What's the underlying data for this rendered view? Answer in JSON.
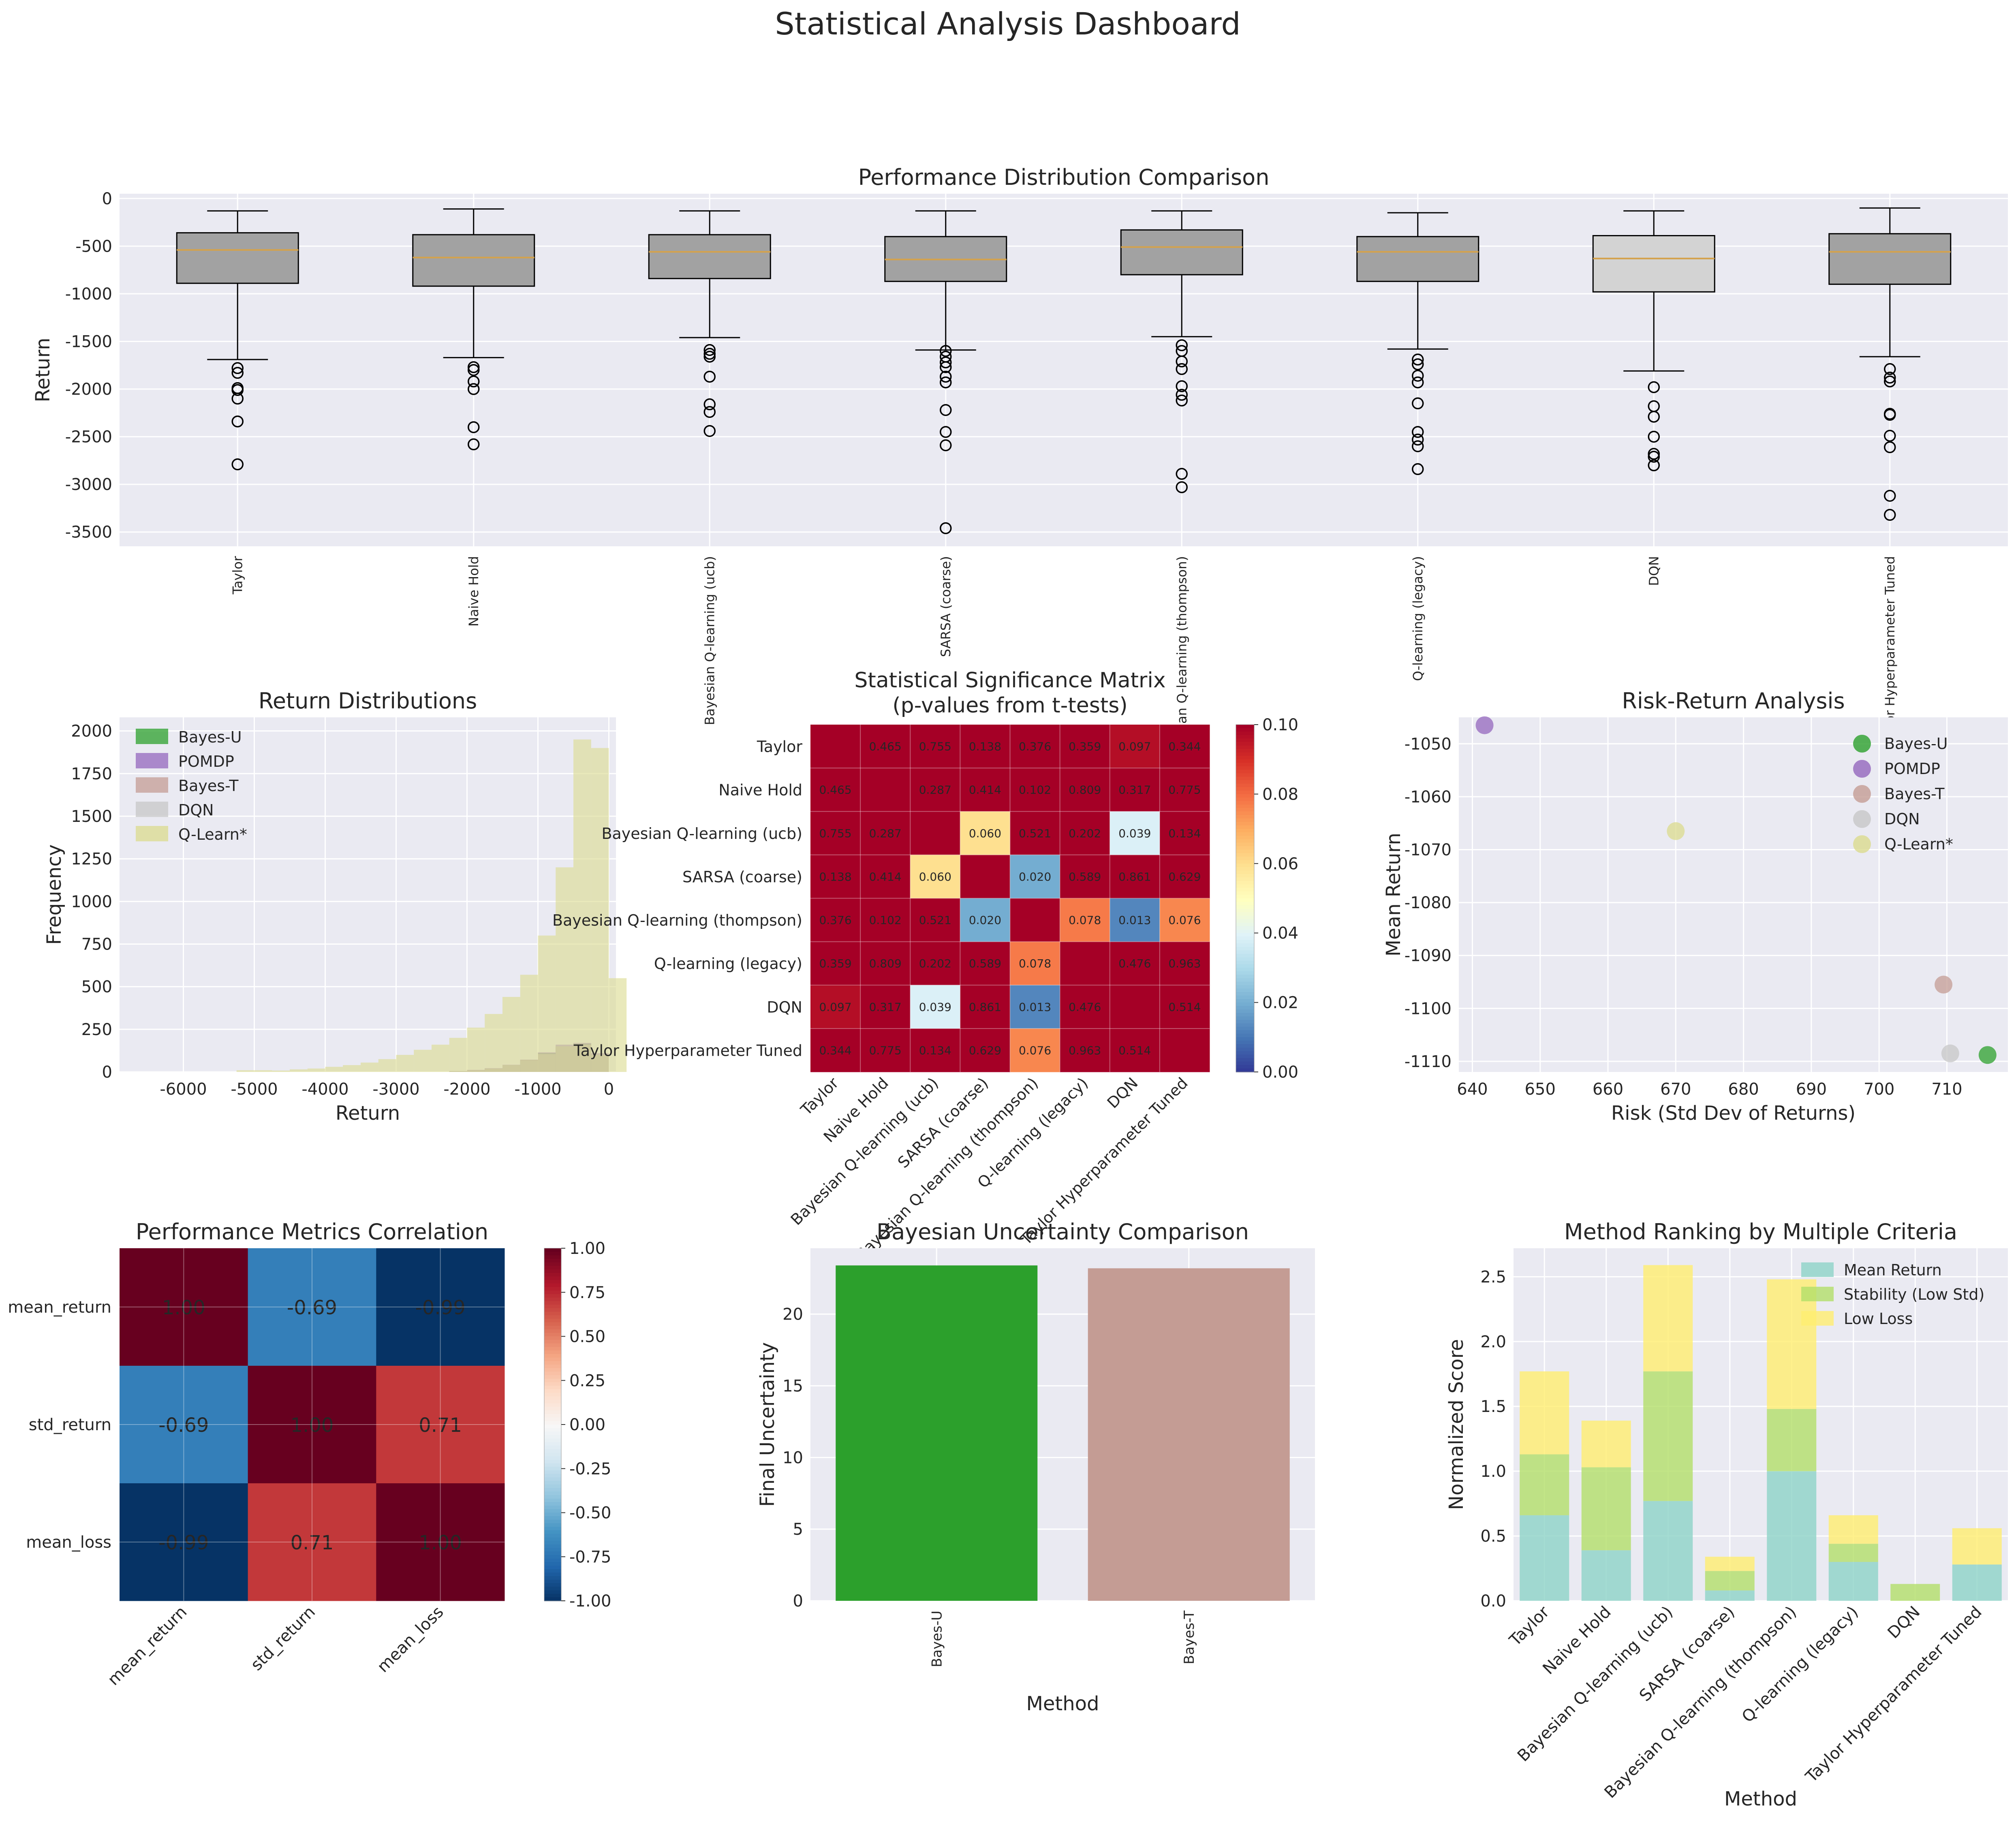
{
  "figure_title": "Statistical Analysis Dashboard",
  "colors": {
    "panel_bg": "#EAEAF2",
    "grid": "#ffffff",
    "box_fill": "#a2a2a2",
    "box_fill_light": "#d3d3d3",
    "median": "#d4a24c",
    "bayes_u": "#2ca02c",
    "pomdp": "#9467bd",
    "bayes_t": "#c49c94",
    "dqn": "#c7c7c7",
    "qlearn": "#dbdb8d",
    "rank_mean": "#8dd3c7",
    "rank_stability": "#b3de69",
    "rank_lowloss": "#ffed6f"
  },
  "chart_data": [
    {
      "id": "boxplot",
      "type": "box",
      "title": "Performance Distribution Comparison",
      "ylabel": "Return",
      "ylim": [
        -3650,
        50
      ],
      "yticks": [
        0,
        -500,
        -1000,
        -1500,
        -2000,
        -2500,
        -3000,
        -3500
      ],
      "categories": [
        "Taylor",
        "Naive Hold",
        "Bayesian Q-learning (ucb)",
        "SARSA (coarse)",
        "Bayesian Q-learning (thompson)",
        "Q-learning (legacy)",
        "DQN",
        "Taylor Hyperparameter Tuned"
      ],
      "boxes": [
        {
          "whislo": -1690,
          "q1": -890,
          "med": -540,
          "q3": -360,
          "whishi": -130,
          "fliers": [
            -1780,
            -1830,
            -1990,
            -2010,
            -2100,
            -2340,
            -2790
          ]
        },
        {
          "whislo": -1670,
          "q1": -920,
          "med": -620,
          "q3": -380,
          "whishi": -110,
          "fliers": [
            -1770,
            -1800,
            -1920,
            -2000,
            -2400,
            -2580
          ]
        },
        {
          "whislo": -1460,
          "q1": -840,
          "med": -560,
          "q3": -380,
          "whishi": -130,
          "fliers": [
            -1590,
            -1630,
            -1660,
            -1870,
            -2160,
            -2240,
            -2440
          ]
        },
        {
          "whislo": -1590,
          "q1": -870,
          "med": -640,
          "q3": -400,
          "whishi": -130,
          "fliers": [
            -1600,
            -1660,
            -1720,
            -1770,
            -1870,
            -1930,
            -2220,
            -2450,
            -2590,
            -3460
          ]
        },
        {
          "whislo": -1450,
          "q1": -800,
          "med": -510,
          "q3": -330,
          "whishi": -130,
          "fliers": [
            -1540,
            -1600,
            -1710,
            -1790,
            -1970,
            -2060,
            -2120,
            -2890,
            -3030
          ]
        },
        {
          "whislo": -1580,
          "q1": -870,
          "med": -560,
          "q3": -400,
          "whishi": -150,
          "fliers": [
            -1690,
            -1740,
            -1860,
            -1930,
            -2150,
            -2450,
            -2530,
            -2600,
            -2840
          ]
        },
        {
          "whislo": -1810,
          "q1": -980,
          "med": -630,
          "q3": -390,
          "whishi": -130,
          "fliers": [
            -1980,
            -2180,
            -2290,
            -2500,
            -2680,
            -2710,
            -2800
          ]
        },
        {
          "whislo": -1660,
          "q1": -900,
          "med": -560,
          "q3": -370,
          "whishi": -100,
          "fliers": [
            -1790,
            -1880,
            -1920,
            -2260,
            -2270,
            -2490,
            -2610,
            -3120,
            -3320
          ]
        }
      ]
    },
    {
      "id": "hist",
      "type": "histogram",
      "title": "Return Distributions",
      "xlabel": "Return",
      "ylabel": "Frequency",
      "xlim": [
        -6900,
        100
      ],
      "ylim": [
        0,
        2080
      ],
      "xticks": [
        -6000,
        -5000,
        -4000,
        -3000,
        -2000,
        -1000,
        0
      ],
      "yticks": [
        0,
        250,
        500,
        750,
        1000,
        1250,
        1500,
        1750,
        2000
      ],
      "bin_width": 250,
      "series": [
        {
          "name": "Bayes-U",
          "color_key": "bayes_u",
          "bins": [
            [
              -2250,
              5
            ],
            [
              -2000,
              10
            ],
            [
              -1750,
              20
            ],
            [
              -1500,
              40
            ],
            [
              -1250,
              70
            ],
            [
              -1000,
              110
            ],
            [
              -750,
              150
            ],
            [
              -500,
              165
            ],
            [
              -250,
              100
            ]
          ]
        },
        {
          "name": "POMDP",
          "color_key": "pomdp",
          "bins": [
            [
              -2250,
              5
            ],
            [
              -2000,
              12
            ],
            [
              -1750,
              22
            ],
            [
              -1500,
              42
            ],
            [
              -1250,
              72
            ],
            [
              -1000,
              115
            ],
            [
              -750,
              160
            ],
            [
              -500,
              170
            ],
            [
              -250,
              110
            ]
          ]
        },
        {
          "name": "Bayes-T",
          "color_key": "bayes_t",
          "bins": [
            [
              -2250,
              5
            ],
            [
              -2000,
              10
            ],
            [
              -1750,
              20
            ],
            [
              -1500,
              40
            ],
            [
              -1250,
              70
            ],
            [
              -1000,
              105
            ],
            [
              -750,
              150
            ],
            [
              -500,
              160
            ],
            [
              -250,
              100
            ]
          ]
        },
        {
          "name": "DQN",
          "color_key": "dqn",
          "bins": [
            [
              -2250,
              5
            ],
            [
              -2000,
              10
            ],
            [
              -1750,
              20
            ],
            [
              -1500,
              40
            ],
            [
              -1250,
              68
            ],
            [
              -1000,
              105
            ],
            [
              -750,
              150
            ],
            [
              -500,
              160
            ],
            [
              -250,
              100
            ]
          ]
        },
        {
          "name": "Q-Learn*",
          "color_key": "qlearn",
          "bins": [
            [
              -5250,
              10
            ],
            [
              -5000,
              10
            ],
            [
              -4750,
              8
            ],
            [
              -4500,
              15
            ],
            [
              -4250,
              20
            ],
            [
              -4000,
              30
            ],
            [
              -3750,
              40
            ],
            [
              -3500,
              55
            ],
            [
              -3250,
              75
            ],
            [
              -3000,
              100
            ],
            [
              -2750,
              130
            ],
            [
              -2500,
              160
            ],
            [
              -2250,
              200
            ],
            [
              -2000,
              260
            ],
            [
              -1750,
              340
            ],
            [
              -1500,
              440
            ],
            [
              -1250,
              570
            ],
            [
              -1000,
              800
            ],
            [
              -750,
              1200
            ],
            [
              -500,
              1950
            ],
            [
              -250,
              1900
            ],
            [
              0,
              550
            ]
          ]
        }
      ]
    },
    {
      "id": "pvals",
      "type": "heatmap",
      "title": "Statistical Significance Matrix",
      "subtitle": "(p-values from t-tests)",
      "labels": [
        "Taylor",
        "Naive Hold",
        "Bayesian Q-learning (ucb)",
        "SARSA (coarse)",
        "Bayesian Q-learning (thompson)",
        "Q-learning (legacy)",
        "DQN",
        "Taylor Hyperparameter Tuned"
      ],
      "vmin": 0,
      "vmax": 0.1,
      "cbar_ticks": [
        "0.00",
        "0.02",
        "0.04",
        "0.06",
        "0.08",
        "0.10"
      ],
      "matrix": [
        [
          null,
          0.465,
          0.755,
          0.138,
          0.376,
          0.359,
          0.097,
          0.344
        ],
        [
          0.465,
          null,
          0.287,
          0.414,
          0.102,
          0.809,
          0.317,
          0.775
        ],
        [
          0.755,
          0.287,
          null,
          0.06,
          0.521,
          0.202,
          0.039,
          0.134
        ],
        [
          0.138,
          0.414,
          0.06,
          null,
          0.02,
          0.589,
          0.861,
          0.629
        ],
        [
          0.376,
          0.102,
          0.521,
          0.02,
          null,
          0.078,
          0.013,
          0.076
        ],
        [
          0.359,
          0.809,
          0.202,
          0.589,
          0.078,
          null,
          0.476,
          0.963
        ],
        [
          0.097,
          0.317,
          0.039,
          0.861,
          0.013,
          0.476,
          null,
          0.514
        ],
        [
          0.344,
          0.775,
          0.134,
          0.629,
          0.076,
          0.963,
          0.514,
          null
        ]
      ]
    },
    {
      "id": "riskret",
      "type": "scatter",
      "title": "Risk-Return Analysis",
      "xlabel": "Risk (Std Dev of Returns)",
      "ylabel": "Mean Return",
      "xlim": [
        638,
        719
      ],
      "ylim": [
        -1112,
        -1045
      ],
      "xticks": [
        640,
        650,
        660,
        670,
        680,
        690,
        700,
        710
      ],
      "yticks": [
        -1050,
        -1060,
        -1070,
        -1080,
        -1090,
        -1100,
        -1110
      ],
      "points": [
        {
          "name": "Bayes-U",
          "color_key": "bayes_u",
          "x": 716,
          "y": -1108.8
        },
        {
          "name": "POMDP",
          "color_key": "pomdp",
          "x": 641.8,
          "y": -1046.5
        },
        {
          "name": "Bayes-T",
          "color_key": "bayes_t",
          "x": 709.5,
          "y": -1095.5
        },
        {
          "name": "DQN",
          "color_key": "dqn",
          "x": 710.5,
          "y": -1108.5
        },
        {
          "name": "Q-Learn*",
          "color_key": "qlearn",
          "x": 670,
          "y": -1066.5
        }
      ]
    },
    {
      "id": "corr",
      "type": "heatmap",
      "title": "Performance Metrics Correlation",
      "labels": [
        "mean_return",
        "std_return",
        "mean_loss"
      ],
      "vmin": -1,
      "vmax": 1,
      "cbar_ticks": [
        "1.00",
        "0.75",
        "0.50",
        "0.25",
        "0.00",
        "-0.25",
        "-0.50",
        "-0.75",
        "-1.00"
      ],
      "matrix": [
        [
          1.0,
          -0.69,
          -0.99
        ],
        [
          -0.69,
          1.0,
          0.71
        ],
        [
          -0.99,
          0.71,
          1.0
        ]
      ],
      "cell_text": [
        [
          "1.00",
          "-0.69",
          "-0.99"
        ],
        [
          "-0.69",
          "1.00",
          "0.71"
        ],
        [
          "-0.99",
          "0.71",
          "1.00"
        ]
      ]
    },
    {
      "id": "uncert",
      "type": "bar",
      "title": "Bayesian Uncertainty Comparison",
      "xlabel": "Method",
      "ylabel": "Final Uncertainty",
      "ylim": [
        0,
        24.6
      ],
      "yticks": [
        0,
        5,
        10,
        15,
        20
      ],
      "categories": [
        "Bayes-U",
        "Bayes-T"
      ],
      "values": [
        23.4,
        23.2
      ],
      "color_keys": [
        "bayes_u",
        "bayes_t"
      ]
    },
    {
      "id": "ranking",
      "type": "bar",
      "stacked": true,
      "title": "Method Ranking by Multiple Criteria",
      "xlabel": "Method",
      "ylabel": "Normalized Score",
      "ylim": [
        0,
        2.72
      ],
      "yticks": [
        "0.0",
        "0.5",
        "1.0",
        "1.5",
        "2.0",
        "2.5"
      ],
      "categories": [
        "Taylor",
        "Naive Hold",
        "Bayesian Q-learning (ucb)",
        "SARSA (coarse)",
        "Bayesian Q-learning (thompson)",
        "Q-learning (legacy)",
        "DQN",
        "Taylor Hyperparameter Tuned"
      ],
      "series": [
        {
          "name": "Mean Return",
          "color_key": "rank_mean",
          "values": [
            0.66,
            0.39,
            0.77,
            0.08,
            1.0,
            0.3,
            0.0,
            0.28
          ]
        },
        {
          "name": "Stability (Low Std)",
          "color_key": "rank_stability",
          "values": [
            0.47,
            0.64,
            1.0,
            0.15,
            0.48,
            0.14,
            0.13,
            0.0
          ]
        },
        {
          "name": "Low Loss",
          "color_key": "rank_lowloss",
          "values": [
            0.64,
            0.36,
            0.82,
            0.11,
            1.0,
            0.22,
            0.0,
            0.28
          ]
        }
      ]
    }
  ]
}
